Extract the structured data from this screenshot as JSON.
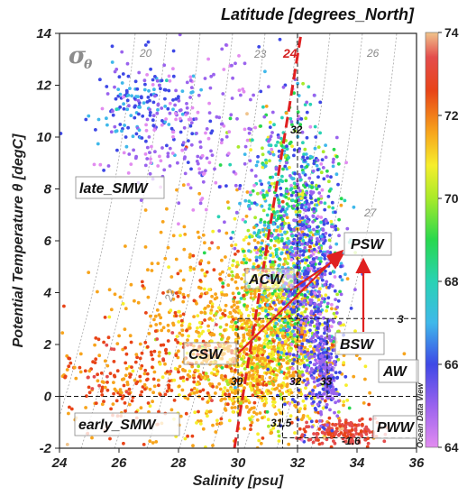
{
  "chart_data": {
    "type": "scatter",
    "title": "",
    "xlabel": "Salinity [psu]",
    "ylabel": "Potential Temperature θ [degC]",
    "xlim": [
      24,
      36
    ],
    "ylim": [
      -2,
      14
    ],
    "xticks": [
      "24",
      "26",
      "28",
      "30",
      "32",
      "34",
      "36"
    ],
    "yticks": [
      "-2",
      "0",
      "2",
      "4",
      "6",
      "8",
      "10",
      "12",
      "14"
    ],
    "colorbar": {
      "title": "Latitude [degrees_North]",
      "min": 64,
      "max": 74,
      "ticks": [
        "64",
        "66",
        "68",
        "70",
        "72",
        "74"
      ],
      "side_label": "Ocean Data View"
    },
    "density_label": "σθ",
    "isopycnals": [
      "20",
      "23",
      "24",
      "26",
      "27",
      "22"
    ],
    "grid": false,
    "water_masses": [
      {
        "label": "late_SMW",
        "salinity": 26.5,
        "temperature": 8.3
      },
      {
        "label": "early_SMW",
        "salinity": 25.8,
        "temperature": -1.5
      },
      {
        "label": "ACW",
        "salinity": 31.3,
        "temperature": 4.7
      },
      {
        "label": "CSW",
        "salinity": 30.0,
        "temperature": 1.7
      },
      {
        "label": "PSW",
        "salinity": 34.0,
        "temperature": 6.3
      },
      {
        "label": "BSW",
        "salinity": 33.7,
        "temperature": 2.1
      },
      {
        "label": "AW",
        "salinity": 35.0,
        "temperature": 1.2
      },
      {
        "label": "PWW",
        "salinity": 34.9,
        "temperature": -1.1
      }
    ],
    "boundary_labels": [
      "32",
      "30",
      "32",
      "33",
      "3",
      "31.5",
      "-1.6"
    ],
    "dashed_lines": {
      "salinity_32": 32,
      "salinity_30": 30,
      "salinity_31_5": 31.5,
      "salinity_33": 33,
      "temperature_3": 3,
      "temperature_0": 0,
      "temperature_minus_1_6": -1.6
    }
  }
}
